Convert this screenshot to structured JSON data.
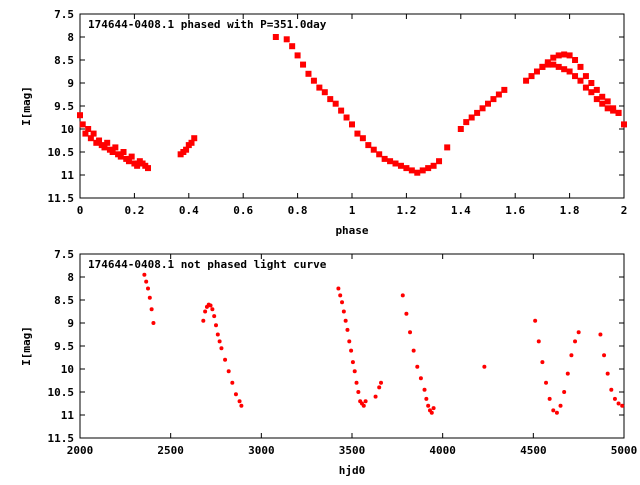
{
  "chart_data": [
    {
      "type": "scatter",
      "title": "174644-0408.1 phased with P=351.0day",
      "xlabel": "phase",
      "ylabel": "I[mag]",
      "xlim": [
        0,
        2
      ],
      "ylim": [
        7.5,
        11.5
      ],
      "y_inverted": true,
      "x_ticks": [
        0,
        0.2,
        0.4,
        0.6,
        0.8,
        1,
        1.2,
        1.4,
        1.6,
        1.8,
        2
      ],
      "x_tick_labels": [
        "0",
        "0.2",
        "0.4",
        "0.6",
        "0.8",
        "1",
        "1.2",
        "1.4",
        "1.6",
        "1.8",
        "2"
      ],
      "y_ticks": [
        7.5,
        8,
        8.5,
        9,
        9.5,
        10,
        10.5,
        11,
        11.5
      ],
      "y_tick_labels": [
        "7.5",
        "8",
        "8.5",
        "9",
        "9.5",
        "10",
        "10.5",
        "11",
        "11.5"
      ],
      "color": "#ff0000",
      "series": [
        {
          "x": [
            0.0,
            0.01,
            0.02,
            0.03,
            0.04,
            0.05,
            0.06,
            0.07,
            0.08,
            0.09,
            0.1,
            0.11,
            0.12,
            0.13,
            0.14,
            0.15,
            0.16,
            0.17,
            0.18,
            0.19,
            0.2,
            0.21,
            0.22,
            0.23,
            0.24,
            0.25,
            0.37,
            0.38,
            0.39,
            0.4,
            0.41,
            0.42,
            0.72,
            0.76,
            0.78,
            0.8,
            0.82,
            0.84,
            0.86,
            0.88,
            0.9,
            0.92,
            0.94,
            0.96,
            0.98,
            1.0,
            1.02,
            1.04,
            1.06,
            1.08,
            1.1,
            1.12,
            1.14,
            1.16,
            1.18,
            1.2,
            1.22,
            1.24,
            1.26,
            1.28,
            1.3,
            1.32,
            1.35,
            1.4,
            1.42,
            1.44,
            1.46,
            1.48,
            1.5,
            1.52,
            1.54,
            1.56,
            1.64,
            1.66,
            1.68,
            1.7,
            1.72,
            1.74,
            1.76,
            1.78,
            1.8,
            1.82,
            1.84,
            1.86,
            1.88,
            1.9,
            1.92,
            1.94,
            1.96,
            1.98,
            2.0
          ],
          "y": [
            9.7,
            9.9,
            10.1,
            10.0,
            10.2,
            10.1,
            10.3,
            10.25,
            10.35,
            10.4,
            10.3,
            10.45,
            10.5,
            10.4,
            10.55,
            10.6,
            10.5,
            10.65,
            10.7,
            10.6,
            10.75,
            10.8,
            10.7,
            10.75,
            10.8,
            10.85,
            10.55,
            10.5,
            10.45,
            10.35,
            10.3,
            10.2,
            8.0,
            8.05,
            8.2,
            8.4,
            8.6,
            8.8,
            8.95,
            9.1,
            9.2,
            9.35,
            9.45,
            9.6,
            9.75,
            9.9,
            10.1,
            10.2,
            10.35,
            10.45,
            10.55,
            10.65,
            10.7,
            10.75,
            10.8,
            10.85,
            10.9,
            10.95,
            10.9,
            10.85,
            10.8,
            10.7,
            10.4,
            10.0,
            9.85,
            9.75,
            9.65,
            9.55,
            9.45,
            9.35,
            9.25,
            9.15,
            8.95,
            8.85,
            8.75,
            8.65,
            8.55,
            8.45,
            8.4,
            8.38,
            8.4,
            8.5,
            8.65,
            8.85,
            9.0,
            9.15,
            9.3,
            9.4,
            9.55,
            9.65,
            9.9
          ]
        },
        {
          "x": [
            1.7,
            1.72,
            1.74,
            1.76,
            1.78,
            1.8,
            1.82,
            1.84,
            1.86,
            1.88,
            1.9,
            1.92,
            1.94,
            1.96,
            1.98
          ],
          "y": [
            8.65,
            8.6,
            8.6,
            8.65,
            8.7,
            8.75,
            8.85,
            8.95,
            9.1,
            9.2,
            9.35,
            9.45,
            9.55,
            9.6,
            9.65
          ]
        }
      ]
    },
    {
      "type": "scatter",
      "title": "174644-0408.1 not phased light curve",
      "xlabel": "hjd0",
      "ylabel": "I[mag]",
      "xlim": [
        2000,
        5000
      ],
      "ylim": [
        7.5,
        11.5
      ],
      "y_inverted": true,
      "x_ticks": [
        2000,
        2500,
        3000,
        3500,
        4000,
        4500,
        5000
      ],
      "x_tick_labels": [
        "2000",
        "2500",
        "3000",
        "3500",
        "4000",
        "4500",
        "5000"
      ],
      "y_ticks": [
        7.5,
        8,
        8.5,
        9,
        9.5,
        10,
        10.5,
        11,
        11.5
      ],
      "y_tick_labels": [
        "7.5",
        "8",
        "8.5",
        "9",
        "9.5",
        "10",
        "10.5",
        "11",
        "11.5"
      ],
      "color": "#ff0000",
      "series": [
        {
          "x": [
            2355,
            2365,
            2375,
            2385,
            2395,
            2405,
            2680,
            2690,
            2700,
            2710,
            2720,
            2730,
            2740,
            2750,
            2760,
            2770,
            2780,
            2800,
            2820,
            2840,
            2860,
            2880,
            2890,
            3425,
            3435,
            3445,
            3455,
            3465,
            3475,
            3485,
            3495,
            3505,
            3515,
            3525,
            3535,
            3545,
            3555,
            3565,
            3575,
            3630,
            3650,
            3660,
            3780,
            3800,
            3820,
            3840,
            3860,
            3880,
            3900,
            3910,
            3920,
            3930,
            3940,
            3950,
            4230,
            4510,
            4530,
            4550,
            4570,
            4590,
            4610,
            4630,
            4650,
            4670,
            4690,
            4710,
            4730,
            4750,
            4870,
            4890,
            4910,
            4930,
            4950,
            4970,
            4990
          ],
          "y": [
            7.95,
            8.1,
            8.25,
            8.45,
            8.7,
            9.0,
            8.95,
            8.75,
            8.65,
            8.6,
            8.62,
            8.7,
            8.85,
            9.05,
            9.25,
            9.4,
            9.55,
            9.8,
            10.05,
            10.3,
            10.55,
            10.7,
            10.8,
            8.25,
            8.4,
            8.55,
            8.75,
            8.95,
            9.15,
            9.4,
            9.6,
            9.85,
            10.05,
            10.3,
            10.5,
            10.7,
            10.75,
            10.8,
            10.7,
            10.6,
            10.4,
            10.3,
            8.4,
            8.8,
            9.2,
            9.6,
            9.95,
            10.2,
            10.45,
            10.65,
            10.8,
            10.9,
            10.95,
            10.85,
            9.95,
            8.95,
            9.4,
            9.85,
            10.3,
            10.65,
            10.9,
            10.95,
            10.8,
            10.5,
            10.1,
            9.7,
            9.4,
            9.2,
            9.25,
            9.7,
            10.1,
            10.45,
            10.65,
            10.75,
            10.8
          ]
        }
      ]
    }
  ]
}
